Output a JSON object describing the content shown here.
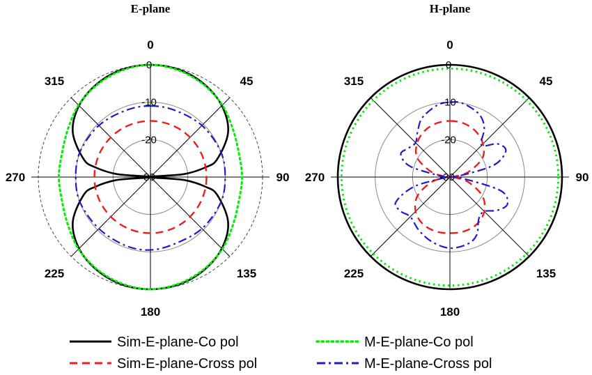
{
  "chart_data": [
    {
      "type": "polar",
      "title": "E-plane",
      "angle_labels": [
        "0",
        "45",
        "90",
        "135",
        "180",
        "225",
        "270",
        "315"
      ],
      "radial_range": [
        -30,
        0
      ],
      "radial_ticks": [
        "0",
        "-10",
        "-20",
        "-30"
      ],
      "grid": true,
      "series": [
        {
          "name": "Sim-E-plane-Co pol",
          "color": "#000000",
          "dash": "solid",
          "angles": [
            0,
            15,
            30,
            45,
            60,
            75,
            80,
            85,
            90,
            95,
            100,
            105,
            120,
            135,
            150,
            165,
            180,
            195,
            210,
            225,
            240,
            255,
            260,
            265,
            270,
            275,
            280,
            285,
            300,
            315,
            330,
            345
          ],
          "values": [
            0,
            -0.3,
            -1.3,
            -3,
            -6,
            -11.5,
            -15,
            -21,
            -30,
            -21,
            -15,
            -11.5,
            -6,
            -3,
            -1.3,
            -0.3,
            0,
            -0.3,
            -1.3,
            -3,
            -6,
            -11.5,
            -15,
            -21,
            -30,
            -21,
            -15,
            -11.5,
            -6,
            -3,
            -1.3,
            -0.3
          ]
        },
        {
          "name": "M-E-plane-Co pol",
          "color": "#00ee00",
          "dash": "dotted",
          "angles": [
            0,
            15,
            30,
            45,
            60,
            75,
            90,
            105,
            120,
            135,
            150,
            165,
            180,
            195,
            210,
            225,
            240,
            255,
            270,
            285,
            300,
            315,
            330,
            345
          ],
          "values": [
            0,
            -0.5,
            -1.5,
            -2.8,
            -4.5,
            -5.5,
            -5.5,
            -5.5,
            -4.5,
            -2.8,
            -1.5,
            -0.5,
            0,
            -0.5,
            -1.5,
            -2.8,
            -4.5,
            -5.5,
            -5.5,
            -5.5,
            -4.5,
            -2.8,
            -1.5,
            -0.5
          ]
        },
        {
          "name": "Sim-E-plane-Cross pol",
          "color": "#ee1c1c",
          "dash": "dashed",
          "angles": [
            0,
            30,
            60,
            90,
            120,
            150,
            180,
            210,
            240,
            270,
            300,
            330
          ],
          "values": [
            -15,
            -15,
            -15,
            -15,
            -15,
            -15,
            -15,
            -15,
            -15,
            -15,
            -15,
            -15
          ]
        },
        {
          "name": "M-E-plane-Cross pol",
          "color": "#1c1ccc",
          "dash": "dashdot",
          "angles": [
            0,
            20,
            45,
            70,
            90,
            110,
            135,
            160,
            180,
            200,
            225,
            250,
            270,
            290,
            315,
            340
          ],
          "values": [
            -11,
            -11,
            -10.5,
            -10,
            -10,
            -10,
            -10.5,
            -11,
            -10.5,
            -10.5,
            -10.5,
            -10,
            -10,
            -10,
            -10.5,
            -11
          ]
        }
      ]
    },
    {
      "type": "polar",
      "title": "H-plane",
      "angle_labels": [
        "0",
        "45",
        "90",
        "135",
        "180",
        "225",
        "270",
        "315"
      ],
      "radial_range": [
        -30,
        0
      ],
      "radial_ticks": [
        "0",
        "-10",
        "-20",
        "-30"
      ],
      "grid": true,
      "series": [
        {
          "name": "Sim-E-plane-Co pol",
          "color": "#000000",
          "dash": "solid",
          "angles": [
            0,
            45,
            90,
            135,
            180,
            225,
            270,
            315
          ],
          "values": [
            0,
            0,
            0,
            0,
            0,
            0,
            0,
            0
          ]
        },
        {
          "name": "M-E-plane-Co pol",
          "color": "#00ee00",
          "dash": "dotted",
          "angles": [
            0,
            45,
            90,
            135,
            180,
            225,
            270,
            315
          ],
          "values": [
            -1,
            -1,
            -1,
            -1,
            -1,
            -1,
            -1,
            -1
          ]
        },
        {
          "name": "Sim-E-plane-Cross pol",
          "color": "#ee1c1c",
          "dash": "dashed",
          "angles": [
            0,
            15,
            30,
            45,
            60,
            75,
            85,
            90,
            95,
            105,
            120,
            135,
            150,
            165,
            180,
            195,
            210,
            225,
            240,
            255,
            265,
            270,
            275,
            285,
            300,
            315,
            330,
            345
          ],
          "values": [
            -15,
            -15.2,
            -16,
            -17.5,
            -20,
            -25,
            -29,
            -30,
            -29,
            -25,
            -20,
            -17,
            -15.5,
            -15,
            -15,
            -15,
            -15.5,
            -17,
            -20,
            -25,
            -29,
            -30,
            -29,
            -25,
            -20,
            -17.5,
            -16,
            -15.2
          ]
        },
        {
          "name": "M-E-plane-Cross pol",
          "color": "#1c1ccc",
          "dash": "dashdot",
          "angles": [
            0,
            10,
            25,
            35,
            45,
            55,
            65,
            75,
            85,
            90,
            95,
            105,
            115,
            125,
            135,
            145,
            155,
            165,
            180,
            195,
            210,
            225,
            235,
            245,
            255,
            265,
            270,
            275,
            285,
            295,
            305,
            315,
            325,
            335,
            350
          ],
          "values": [
            -10,
            -10,
            -11.5,
            -14,
            -18,
            -14.5,
            -13.5,
            -18,
            -28,
            -30,
            -27,
            -16,
            -13,
            -14.5,
            -17,
            -16.5,
            -13,
            -11.5,
            -11,
            -12,
            -13.5,
            -15,
            -14,
            -14,
            -20,
            -29,
            -30,
            -28,
            -19,
            -15.5,
            -16.5,
            -17,
            -15,
            -12.5,
            -10.5
          ]
        }
      ]
    }
  ],
  "legend": [
    {
      "label": "Sim-E-plane-Co pol",
      "color": "#000000",
      "dash": "solid"
    },
    {
      "label": "M-E-plane-Co pol",
      "color": "#00ee00",
      "dash": "dotted"
    },
    {
      "label": "Sim-E-plane-Cross pol",
      "color": "#ee1c1c",
      "dash": "dashed"
    },
    {
      "label": "M-E-plane-Cross pol",
      "color": "#1c1ccc",
      "dash": "dashdot"
    }
  ]
}
